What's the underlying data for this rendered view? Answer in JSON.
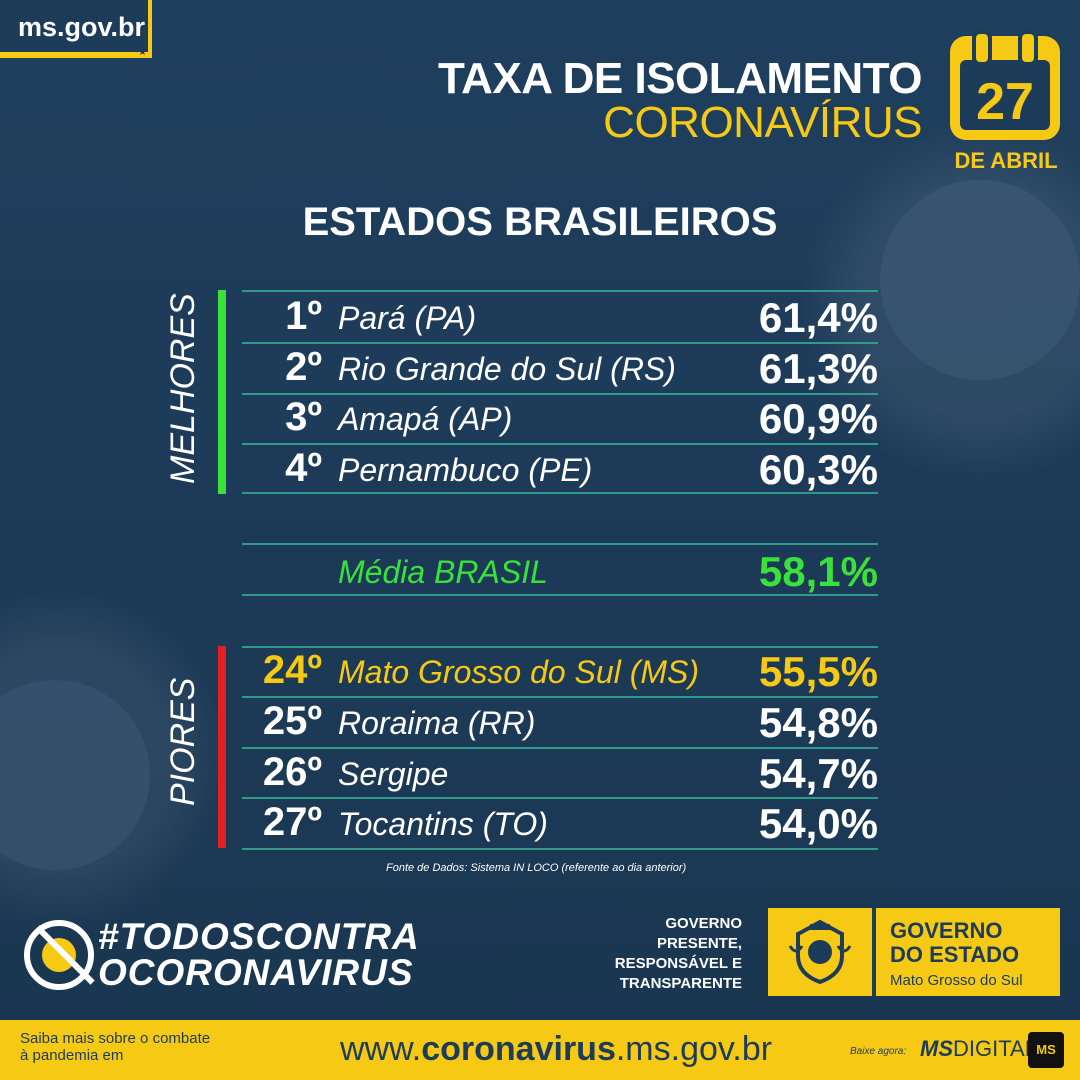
{
  "site": {
    "label": "ms.gov.br"
  },
  "header": {
    "title_line1": "TAXA DE ISOLAMENTO",
    "title_line2": "CORONAVÍRUS",
    "calendar_day": "27",
    "calendar_month": "DE ABRIL"
  },
  "subtitle": "ESTADOS BRASILEIROS",
  "best": {
    "label": "MELHORES",
    "rows": [
      {
        "rank": "1º",
        "state": "Pará (PA)",
        "value": "61,4%"
      },
      {
        "rank": "2º",
        "state": "Rio Grande do Sul (RS)",
        "value": "61,3%"
      },
      {
        "rank": "3º",
        "state": "Amapá (AP)",
        "value": "60,9%"
      },
      {
        "rank": "4º",
        "state": "Pernambuco (PE)",
        "value": "60,3%"
      }
    ]
  },
  "average": {
    "label": "Média BRASIL",
    "value": "58,1%"
  },
  "worst": {
    "label": "PIORES",
    "rows": [
      {
        "rank": "24º",
        "state": "Mato Grosso do Sul (MS)",
        "value": "55,5%"
      },
      {
        "rank": "25º",
        "state": "Roraima (RR)",
        "value": "54,8%"
      },
      {
        "rank": "26º",
        "state": "Sergipe",
        "value": "54,7%"
      },
      {
        "rank": "27º",
        "state": "Tocantins (TO)",
        "value": "54,0%"
      }
    ]
  },
  "source": "Fonte de Dados: Sistema IN LOCO (referente ao dia anterior)",
  "campaign": {
    "line1": "#TODOSCONTRA",
    "line2": "OCORONAVIRUS"
  },
  "government": {
    "slogan": [
      "GOVERNO",
      "PRESENTE,",
      "RESPONSÁVEL E",
      "TRANSPARENTE"
    ],
    "logo_line1": "GOVERNO",
    "logo_line2": "DO ESTADO",
    "logo_line3": "Mato Grosso do Sul"
  },
  "footer": {
    "info": "Saiba mais sobre o combate à pandemia em",
    "url_prefix": "www.",
    "url_bold": "coronavirus",
    "url_suffix": ".ms.gov.br",
    "app_label": "Baixe agora:",
    "app_bold": "MS",
    "app_rest": "DIGITAL",
    "app_badge": "MS"
  },
  "colors": {
    "navy": "#1d3c59",
    "yellow": "#f6c915",
    "green": "#39e23a",
    "red": "#e3201f"
  }
}
